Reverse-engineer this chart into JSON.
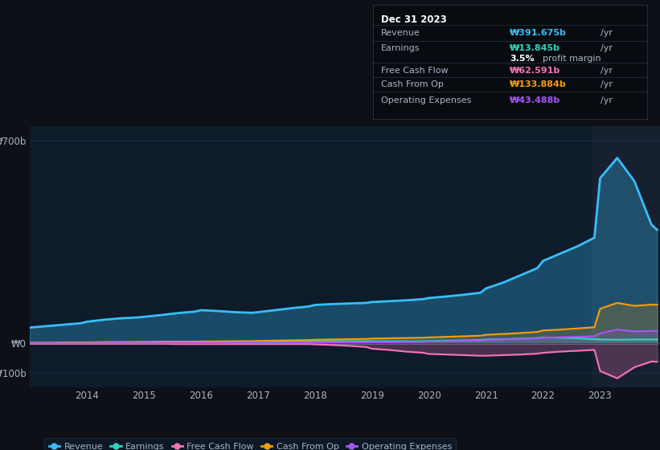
{
  "bg_color": "#0d1117",
  "plot_bg_color": "#0d1b2a",
  "grid_color": "#1e3050",
  "text_color": "#aab4c4",
  "title_color": "#ffffff",
  "revenue_color": "#38bdf8",
  "earnings_color": "#2dd4bf",
  "free_cash_flow_color": "#f472b6",
  "cash_from_op_color": "#f59e0b",
  "operating_expenses_color": "#a855f7",
  "legend_labels": [
    "Revenue",
    "Earnings",
    "Free Cash Flow",
    "Cash From Op",
    "Operating Expenses"
  ],
  "tooltip_bg": "#080c10",
  "tooltip_title": "Dec 31 2023",
  "highlight_color": "#162030",
  "years": [
    2013.0,
    2013.3,
    2013.6,
    2013.9,
    2014.0,
    2014.3,
    2014.6,
    2014.9,
    2015.0,
    2015.3,
    2015.6,
    2015.9,
    2016.0,
    2016.3,
    2016.6,
    2016.9,
    2017.0,
    2017.3,
    2017.6,
    2017.9,
    2018.0,
    2018.3,
    2018.6,
    2018.9,
    2019.0,
    2019.3,
    2019.6,
    2019.9,
    2020.0,
    2020.3,
    2020.6,
    2020.9,
    2021.0,
    2021.3,
    2021.6,
    2021.9,
    2022.0,
    2022.3,
    2022.6,
    2022.9,
    2023.0,
    2023.3,
    2023.6,
    2023.9,
    2024.0
  ],
  "revenue": [
    55,
    60,
    65,
    70,
    75,
    82,
    87,
    90,
    92,
    98,
    105,
    110,
    115,
    112,
    108,
    106,
    108,
    115,
    122,
    128,
    133,
    136,
    138,
    140,
    143,
    146,
    149,
    153,
    157,
    162,
    168,
    175,
    190,
    210,
    235,
    260,
    285,
    310,
    335,
    365,
    570,
    640,
    560,
    410,
    392
  ],
  "earnings": [
    2,
    2,
    3,
    3,
    4,
    4,
    4,
    5,
    5,
    5,
    6,
    6,
    7,
    7,
    7,
    7,
    7,
    7,
    8,
    8,
    8,
    8,
    8,
    8,
    8,
    8,
    8,
    8,
    9,
    10,
    11,
    12,
    14,
    15,
    17,
    19,
    21,
    20,
    18,
    15,
    14,
    13,
    14,
    14,
    14
  ],
  "free_cash_flow": [
    -1,
    -1,
    -1,
    -1,
    -1,
    -1,
    -1,
    -1,
    -1,
    -1,
    -2,
    -2,
    -2,
    -2,
    -2,
    -2,
    -2,
    -2,
    -2,
    -2,
    -3,
    -5,
    -8,
    -12,
    -18,
    -22,
    -28,
    -32,
    -36,
    -38,
    -40,
    -42,
    -42,
    -40,
    -38,
    -35,
    -32,
    -28,
    -25,
    -22,
    -95,
    -120,
    -82,
    -62,
    -63
  ],
  "cash_from_op": [
    3,
    3,
    4,
    4,
    4,
    5,
    5,
    5,
    5,
    6,
    6,
    6,
    7,
    7,
    8,
    8,
    9,
    10,
    11,
    12,
    13,
    14,
    15,
    16,
    17,
    18,
    19,
    20,
    21,
    23,
    25,
    27,
    30,
    33,
    36,
    40,
    45,
    48,
    52,
    56,
    120,
    140,
    130,
    134,
    134
  ],
  "operating_expenses": [
    2,
    2,
    2,
    2,
    2,
    2,
    2,
    2,
    2,
    2,
    2,
    2,
    2,
    2,
    3,
    3,
    3,
    3,
    3,
    3,
    3,
    4,
    4,
    4,
    5,
    5,
    5,
    6,
    7,
    8,
    9,
    10,
    12,
    14,
    16,
    18,
    20,
    22,
    23,
    25,
    35,
    48,
    42,
    43,
    43
  ]
}
